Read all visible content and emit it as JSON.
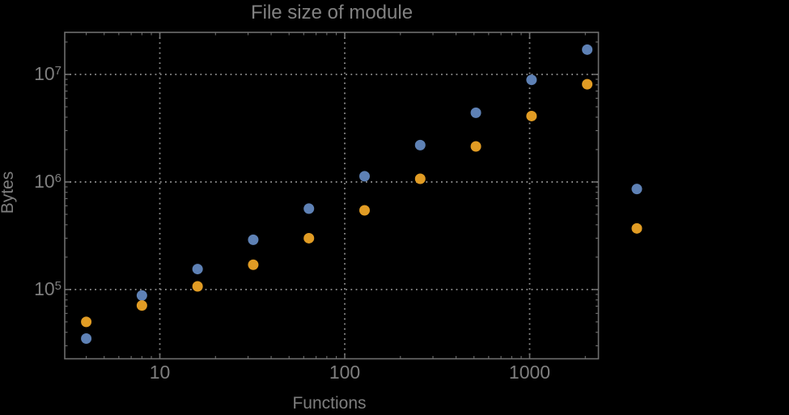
{
  "chart_data": {
    "type": "scatter",
    "title": "File size of module",
    "xlabel": "Functions",
    "ylabel": "Bytes",
    "x_scale": "log",
    "y_scale": "log",
    "xlim": [
      3.06,
      2355
    ],
    "ylim": [
      22700,
      24600000
    ],
    "grid": "dotted gray lines at decade ticks, frame on all four sides, no legend",
    "x": [
      4,
      8,
      16,
      32,
      64,
      128,
      256,
      512,
      1024,
      2048,
      3800
    ],
    "series": [
      {
        "name": "series-1-blue",
        "color": "#5e81b5",
        "values": [
          35000,
          88000,
          155000,
          290000,
          565000,
          1130000,
          2200000,
          4400000,
          8900000,
          17000000,
          860000
        ]
      },
      {
        "name": "series-2-orange",
        "color": "#e19c24",
        "values": [
          50000,
          71000,
          107000,
          170000,
          300000,
          545000,
          1070000,
          2140000,
          4100000,
          8100000,
          370000
        ]
      }
    ],
    "x_ticks": [
      {
        "value": 10,
        "label": "10"
      },
      {
        "value": 100,
        "label": "100"
      },
      {
        "value": 1000,
        "label": "1000"
      }
    ],
    "y_ticks": [
      {
        "value": 100000,
        "base": "10",
        "exponent": "5"
      },
      {
        "value": 1000000,
        "base": "10",
        "exponent": "6"
      },
      {
        "value": 10000000,
        "base": "10",
        "exponent": "7"
      }
    ],
    "marker_diameter_px": 13
  },
  "colors": {
    "background": "#000000",
    "frame": "#6e6e6e",
    "gridline": "#8c8c8c",
    "text": "#7e7e7e",
    "title_text": "#828282"
  }
}
